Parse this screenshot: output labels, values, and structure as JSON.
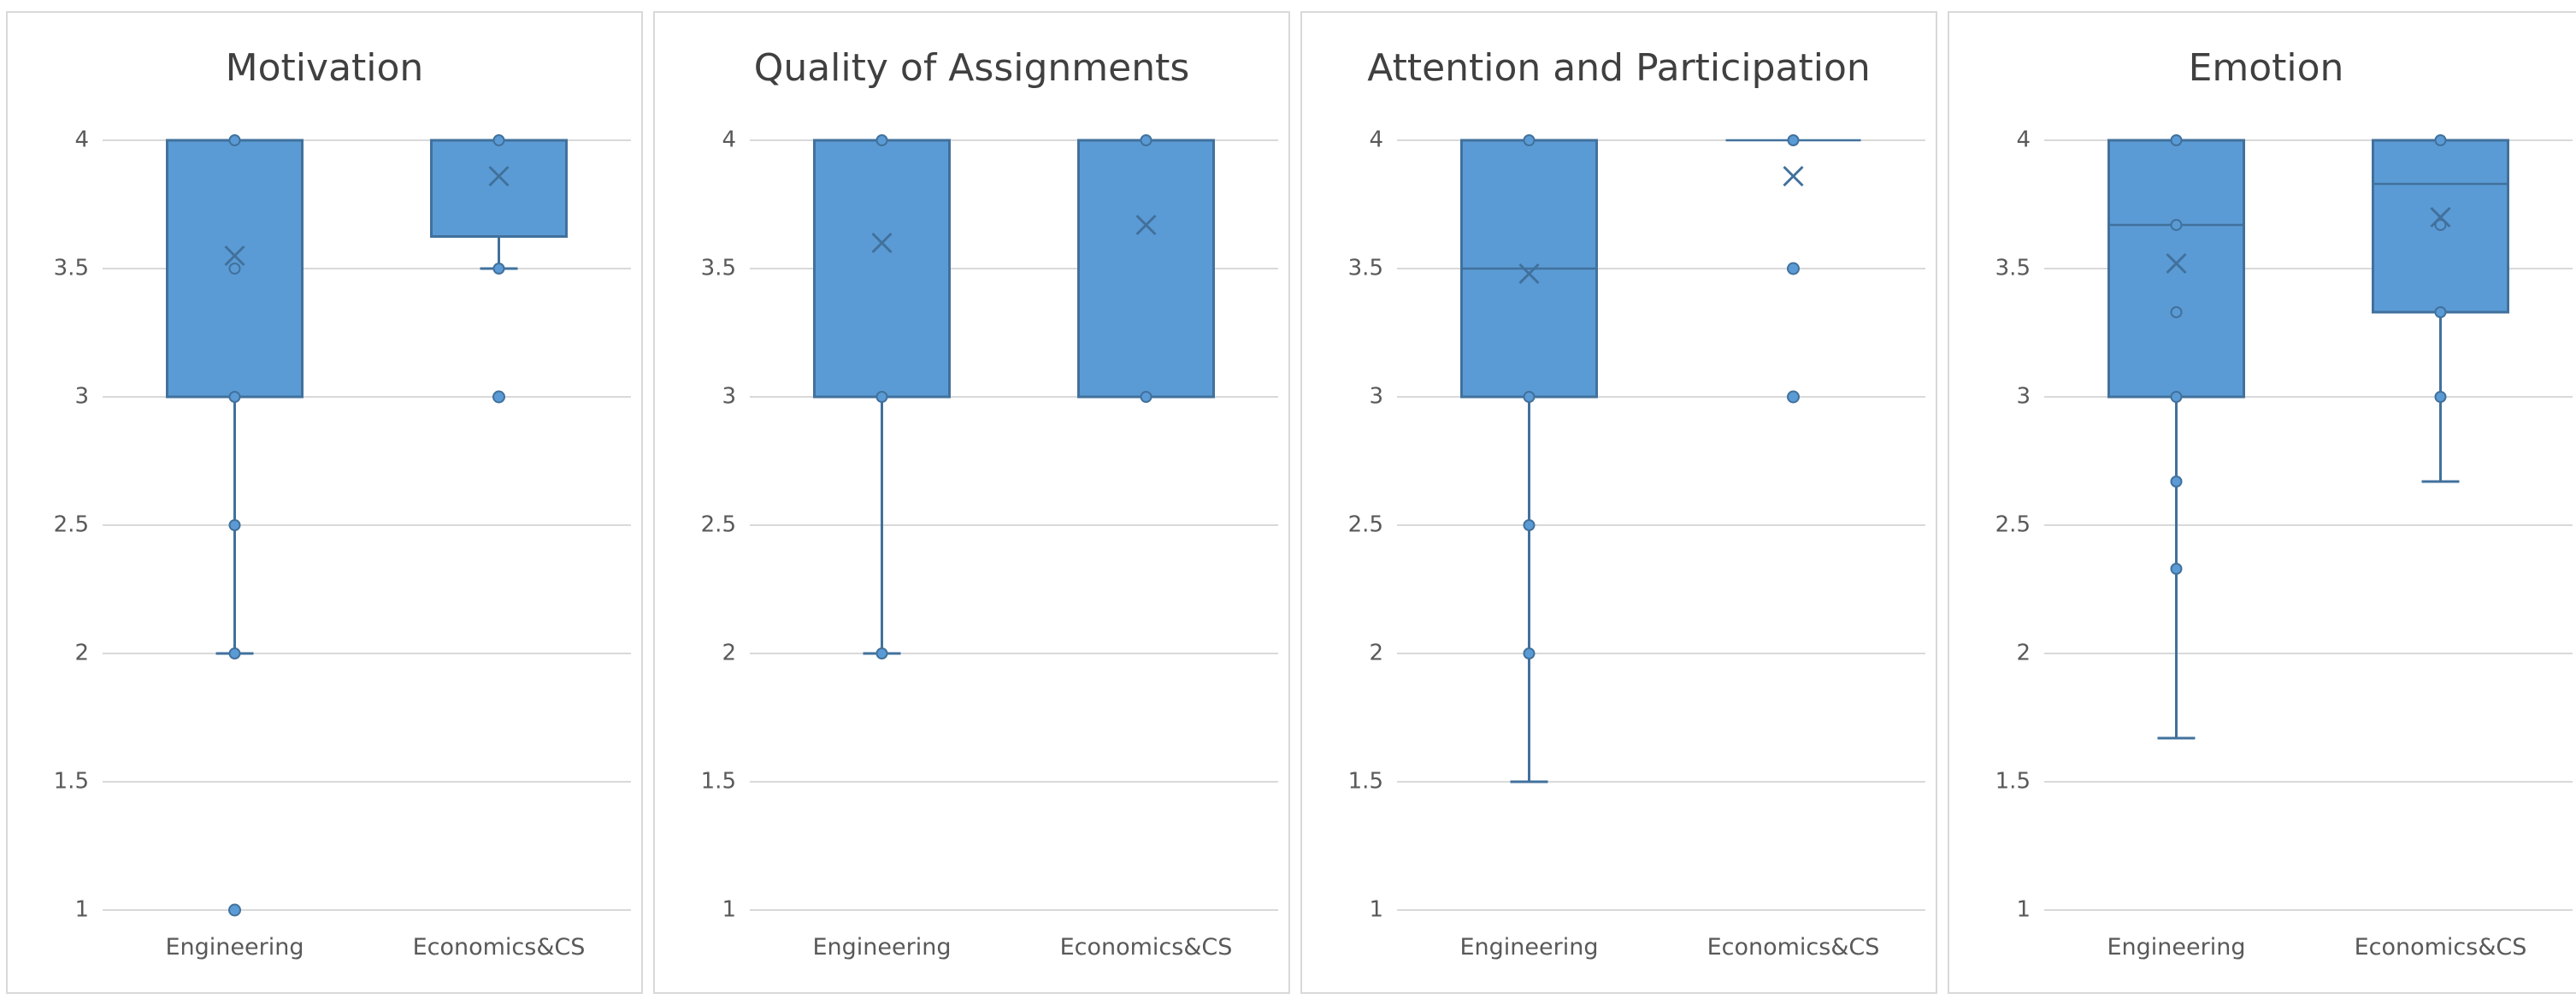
{
  "colors": {
    "box_fill": "#5b9bd5",
    "box_stroke": "#41719c",
    "point_fill": "#5b9bd5",
    "grid": "#d9d9d9",
    "text": "#595959",
    "title": "#404040"
  },
  "chart_data": [
    {
      "type": "box",
      "title": "Motivation",
      "ylim": [
        1,
        4
      ],
      "yticks": [
        "1",
        "1.5",
        "2",
        "2.5",
        "3",
        "3.5",
        "4"
      ],
      "categories": [
        "Engineering",
        "Economics&CS"
      ],
      "boxes": [
        {
          "category": "Engineering",
          "q1": 3,
          "median": 4,
          "q3": 4,
          "whisker_low": 2,
          "whisker_high": 4,
          "mean": 3.55,
          "points": [
            4,
            3.5,
            3,
            2.5,
            2,
            1
          ],
          "outliers": [
            1
          ]
        },
        {
          "category": "Economics&CS",
          "q1": 3.625,
          "median": 4,
          "q3": 4,
          "whisker_low": 3.5,
          "whisker_high": 4,
          "mean": 3.86,
          "points": [
            4,
            3.5
          ],
          "outliers": [
            3
          ]
        }
      ]
    },
    {
      "type": "box",
      "title": "Quality of Assignments",
      "ylim": [
        1,
        4
      ],
      "yticks": [
        "1",
        "1.5",
        "2",
        "2.5",
        "3",
        "3.5",
        "4"
      ],
      "categories": [
        "Engineering",
        "Economics&CS"
      ],
      "boxes": [
        {
          "category": "Engineering",
          "q1": 3,
          "median": 4,
          "q3": 4,
          "whisker_low": 2,
          "whisker_high": 4,
          "mean": 3.6,
          "points": [
            4,
            3,
            2
          ],
          "outliers": []
        },
        {
          "category": "Economics&CS",
          "q1": 3,
          "median": 4,
          "q3": 4,
          "whisker_low": 3,
          "whisker_high": 4,
          "mean": 3.67,
          "points": [
            4,
            3
          ],
          "outliers": []
        }
      ]
    },
    {
      "type": "box",
      "title": "Attention and Participation",
      "ylim": [
        1,
        4
      ],
      "yticks": [
        "1",
        "1.5",
        "2",
        "2.5",
        "3",
        "3.5",
        "4"
      ],
      "categories": [
        "Engineering",
        "Economics&CS"
      ],
      "boxes": [
        {
          "category": "Engineering",
          "q1": 3,
          "median": 3.5,
          "q3": 4,
          "whisker_low": 1.5,
          "whisker_high": 4,
          "mean": 3.48,
          "points": [
            4,
            3,
            2.5,
            2
          ],
          "outliers": []
        },
        {
          "category": "Economics&CS",
          "q1": 4,
          "median": 4,
          "q3": 4,
          "whisker_low": 4,
          "whisker_high": 4,
          "mean": 3.86,
          "points": [
            4
          ],
          "outliers": [
            3.5,
            3
          ]
        }
      ]
    },
    {
      "type": "box",
      "title": "Emotion",
      "ylim": [
        1,
        4
      ],
      "yticks": [
        "1",
        "1.5",
        "2",
        "2.5",
        "3",
        "3.5",
        "4"
      ],
      "categories": [
        "Engineering",
        "Economics&CS"
      ],
      "boxes": [
        {
          "category": "Engineering",
          "q1": 3,
          "median": 3.67,
          "q3": 4,
          "whisker_low": 1.67,
          "whisker_high": 4,
          "mean": 3.52,
          "points": [
            4,
            3.67,
            3.33,
            3,
            2.67,
            2.33
          ],
          "outliers": []
        },
        {
          "category": "Economics&CS",
          "q1": 3.33,
          "median": 3.83,
          "q3": 4,
          "whisker_low": 2.67,
          "whisker_high": 4,
          "mean": 3.7,
          "points": [
            4,
            3.67,
            3.33,
            3
          ],
          "outliers": []
        }
      ]
    }
  ]
}
